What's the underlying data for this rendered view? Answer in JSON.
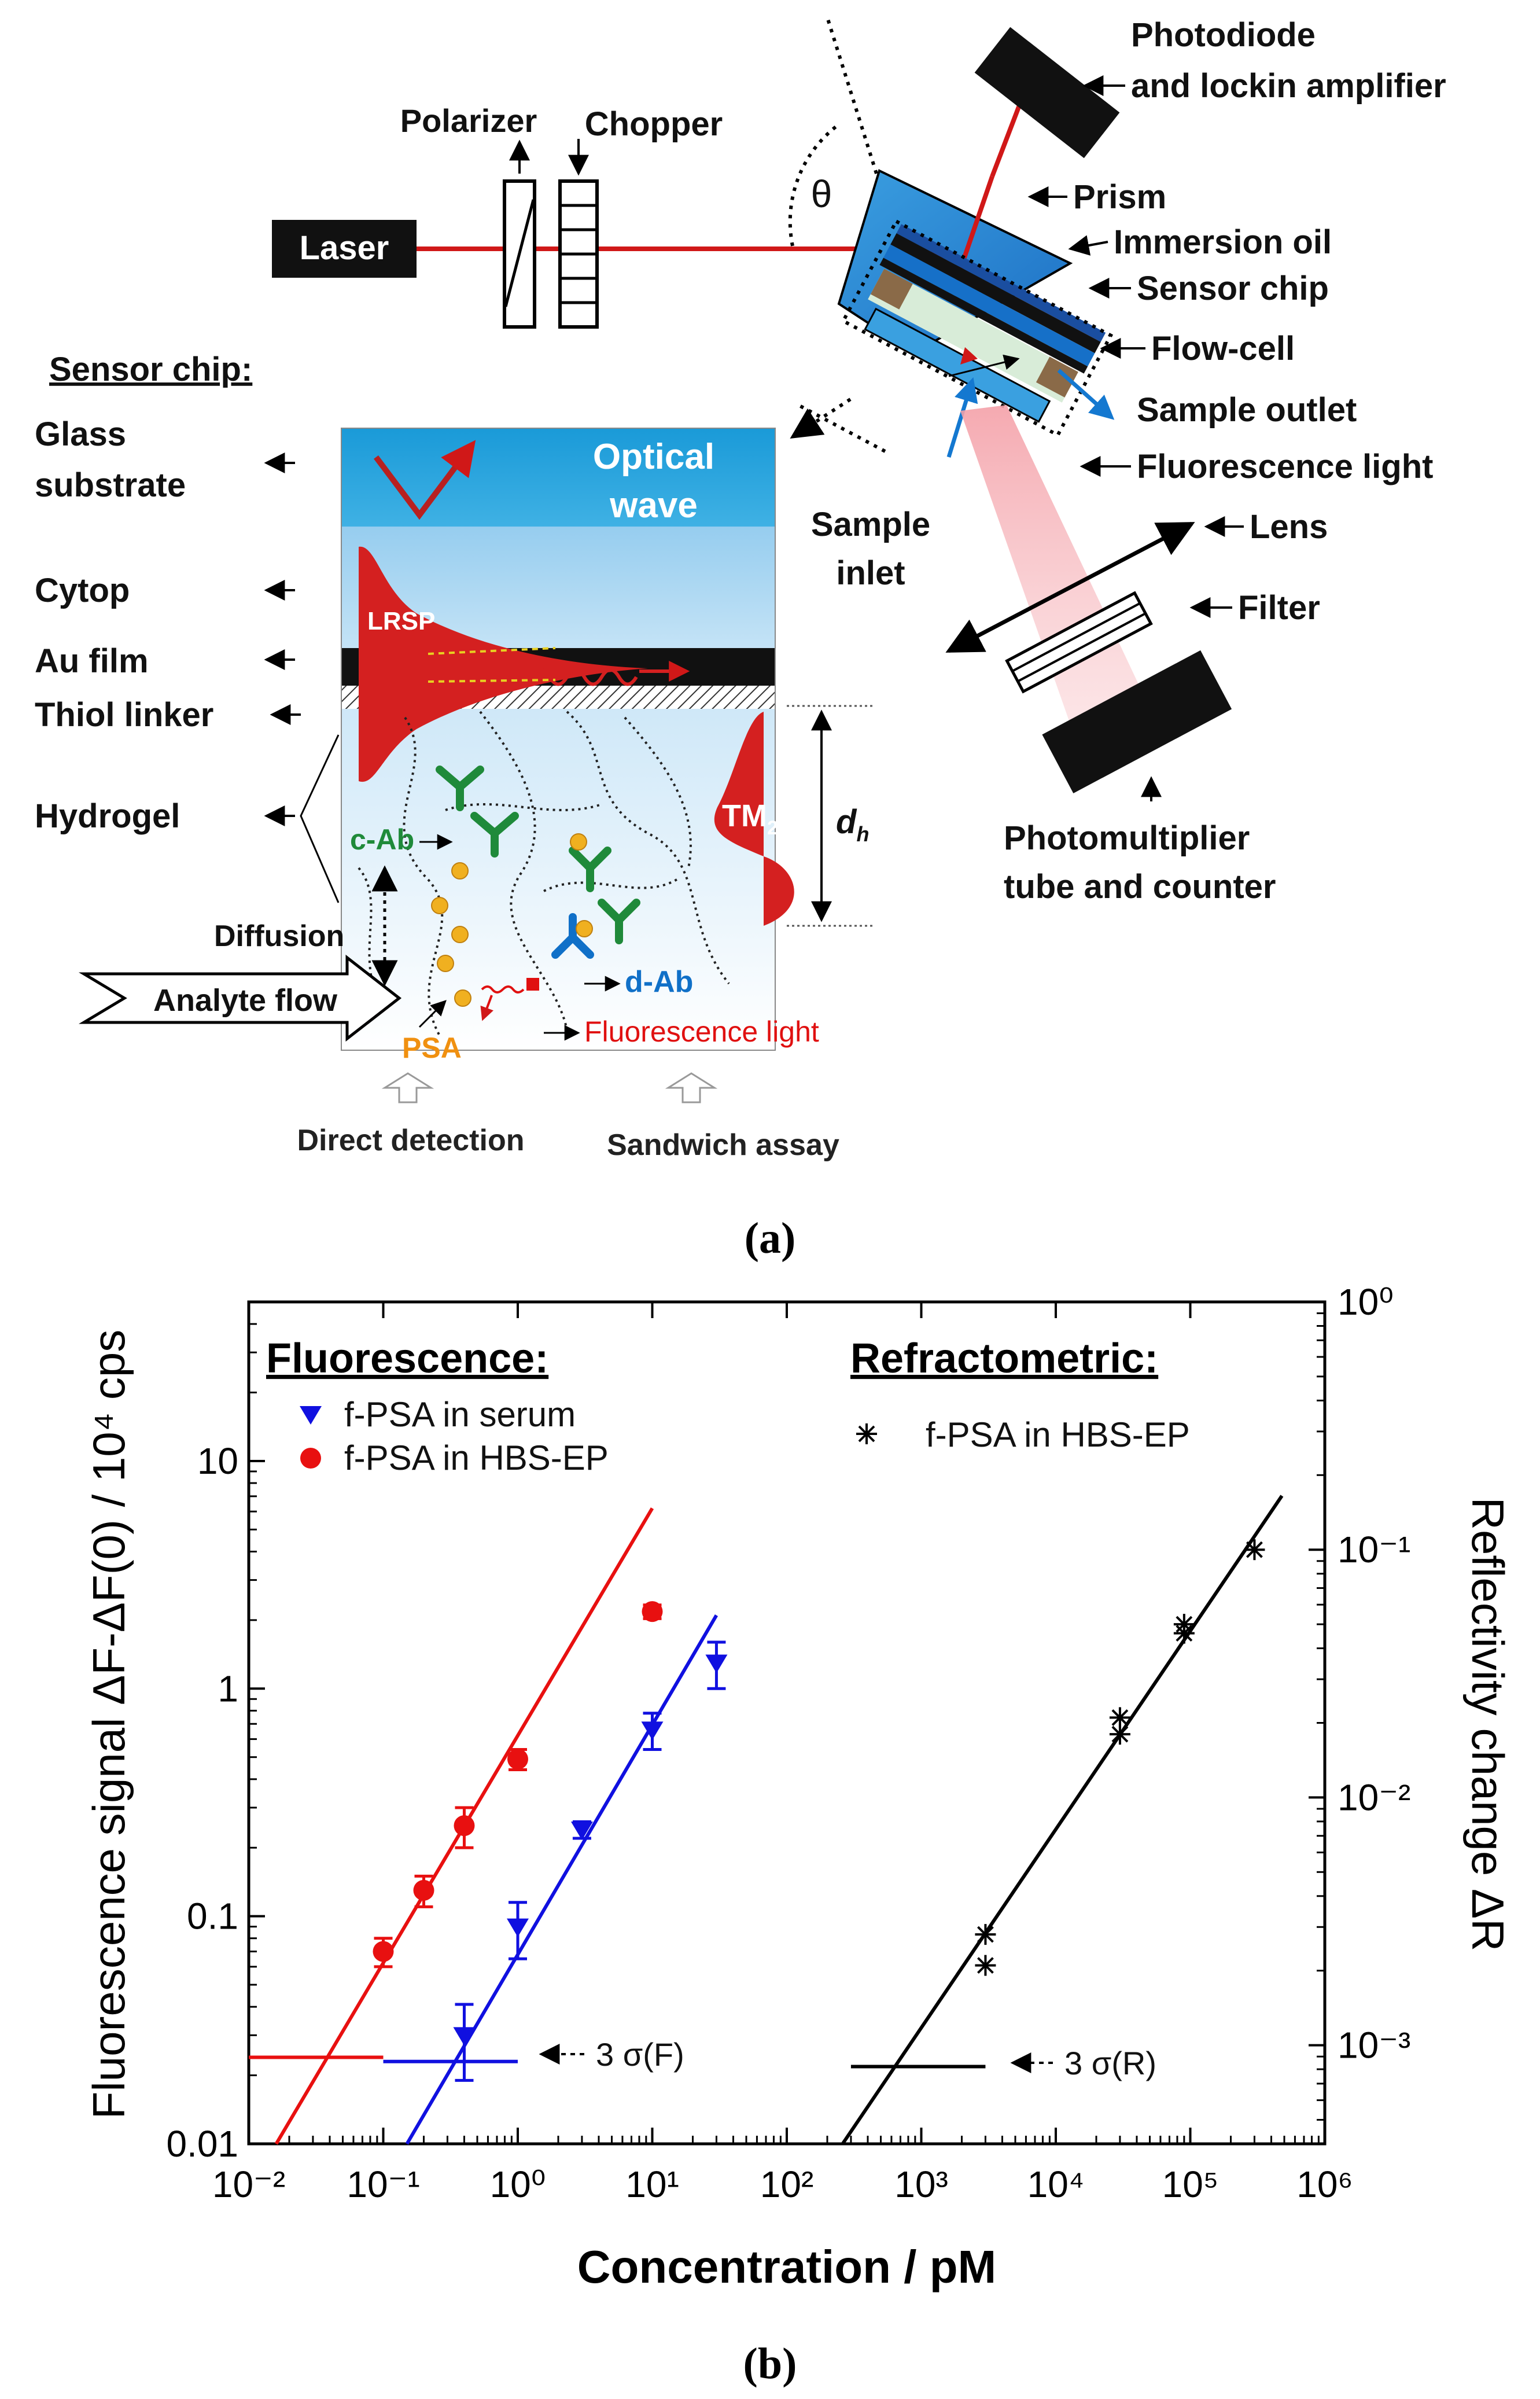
{
  "panel_a": {
    "caption": "(a)",
    "labels": {
      "laser": "Laser",
      "polarizer": "Polarizer",
      "chopper": "Chopper",
      "theta": "θ",
      "photodiode_line1": "Photodiode",
      "photodiode_line2": "and lockin amplifier",
      "prism": "Prism",
      "immersion_oil": "Immersion oil",
      "sensor_chip": "Sensor chip",
      "flow_cell": "Flow-cell",
      "sample_outlet": "Sample outlet",
      "fluorescence_light": "Fluorescence light",
      "sample_inlet_line1": "Sample",
      "sample_inlet_line2": "inlet",
      "lens": "Lens",
      "filter": "Filter",
      "pmt_line1": "Photomultiplier",
      "pmt_line2": "tube and counter",
      "sensor_chip_title": "Sensor chip:",
      "glass_line1": "Glass",
      "glass_line2": "substrate",
      "cytop": "Cytop",
      "au_film": "Au film",
      "thiol_linker": "Thiol linker",
      "hydrogel": "Hydrogel",
      "diffusion": "Diffusion",
      "analyte_flow": "Analyte flow",
      "optical_wave_line1": "Optical",
      "optical_wave_line2": "wave",
      "lrsp": "LRSP",
      "tm2": "TM",
      "tm2_sub": "2",
      "dh": "d",
      "dh_sub": "h",
      "c_ab": "c-Ab",
      "d_ab": "d-Ab",
      "psa": "PSA",
      "fluorescence_light_inner": "Fluorescence light",
      "direct_detection": "Direct detection",
      "sandwich_assay": "Sandwich assay"
    }
  },
  "panel_b": {
    "caption": "(b)",
    "heading_left": "Fluorescence:",
    "heading_right": "Refractometric:",
    "y_left_label": "Fluorescence signal ΔF-ΔF(0) / 10⁴ cps",
    "y_right_label": "Reflectivity change ΔR",
    "x_label": "Concentration / pM",
    "x_ticks": [
      "10⁻²",
      "10⁻¹",
      "10⁰",
      "10¹",
      "10²",
      "10³",
      "10⁴",
      "10⁵",
      "10⁶"
    ],
    "y_left_ticks": [
      "0.01",
      "0.1",
      "1",
      "10"
    ],
    "y_right_ticks": [
      "10⁻³",
      "10⁻²",
      "10⁻¹",
      "10⁰"
    ],
    "annotation_f": "3 σ(F)",
    "annotation_r": "3 σ(R)",
    "colors": {
      "serum": "#1010e0",
      "hbs": "#e81010",
      "refr": "#000000"
    }
  },
  "chart_data": {
    "type": "scatter",
    "xlabel": "Concentration / pM",
    "ylabel": "Fluorescence signal ΔF-ΔF(0) / 10⁴ cps",
    "y2label": "Reflectivity change ΔR",
    "x_scale": "log",
    "y_scale": "log",
    "xlim": [
      0.01,
      1000000
    ],
    "ylim": [
      0.01,
      50
    ],
    "y2lim": [
      0.0004,
      1
    ],
    "legend_position": "top-left (fluorescence), top-right (refractometric)",
    "series": [
      {
        "name": "f-PSA in serum",
        "axis": "left",
        "marker": "triangle-down",
        "color": "#1010e0",
        "x": [
          0.4,
          1,
          3,
          10,
          30
        ],
        "y": [
          0.03,
          0.09,
          0.24,
          0.66,
          1.3
        ],
        "err": [
          0.011,
          0.025,
          0.02,
          0.12,
          0.3
        ],
        "fit_line": {
          "x": [
            0.15,
            30
          ],
          "y": [
            0.01,
            2.1
          ]
        },
        "lod_line": {
          "x": [
            0.1,
            1
          ],
          "y": 0.023
        }
      },
      {
        "name": "f-PSA in HBS-EP",
        "axis": "left",
        "marker": "circle",
        "color": "#e81010",
        "x": [
          0.1,
          0.2,
          0.4,
          1,
          10
        ],
        "y": [
          0.07,
          0.13,
          0.25,
          0.49,
          2.18
        ],
        "err": [
          0.01,
          0.02,
          0.05,
          0.05,
          0.15
        ],
        "fit_line": {
          "x": [
            0.016,
            10
          ],
          "y": [
            0.01,
            6.2
          ]
        },
        "lod_line": {
          "x": [
            0.01,
            0.1
          ],
          "y": 0.024
        }
      },
      {
        "name": "f-PSA in HBS-EP",
        "axis": "right",
        "marker": "asterisk",
        "color": "#000000",
        "x": [
          3000,
          3000,
          30000,
          30000,
          90000,
          90000,
          300000
        ],
        "y": [
          0.0028,
          0.0021,
          0.021,
          0.018,
          0.05,
          0.046,
          0.1
        ],
        "fit_line": {
          "x": [
            260,
            480000
          ],
          "y": [
            0.0004,
            0.165
          ]
        },
        "lod_line": {
          "x": [
            300,
            3000
          ],
          "y": 0.00082
        }
      }
    ]
  }
}
